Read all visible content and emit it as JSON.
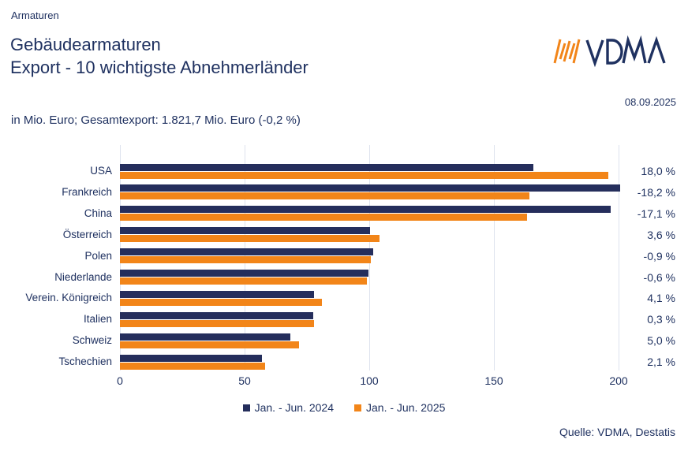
{
  "header": {
    "kicker": "Armaturen",
    "title_line1": "Gebäudearmaturen",
    "title_line2": "Export - 10 wichtigste Abnehmerländer",
    "subtitle": "in Mio. Euro; Gesamtexport: 1.821,7 Mio. Euro (-0,2 %)",
    "date": "08.09.2025",
    "logo_text": "VDMA"
  },
  "colors": {
    "navy": "#252e5c",
    "orange": "#f28519",
    "grid": "#dee3ee",
    "text": "#1f3160"
  },
  "chart_data": {
    "type": "bar",
    "orientation": "horizontal",
    "title": "Gebäudearmaturen Export - 10 wichtigste Abnehmerländer",
    "xlabel": "Mio. Euro",
    "ylabel": "",
    "xlim": [
      0,
      200
    ],
    "x_ticks": [
      "0",
      "50",
      "100",
      "150",
      "200"
    ],
    "grid": true,
    "legend_position": "bottom",
    "categories": [
      "USA",
      "Frankreich",
      "China",
      "Österreich",
      "Polen",
      "Niederlande",
      "Verein. Königreich",
      "Italien",
      "Schweiz",
      "Tschechien"
    ],
    "series": [
      {
        "name": "Jan. - Jun. 2024",
        "color": "#252e5c",
        "values": [
          165.9,
          200.6,
          196.8,
          100.4,
          101.5,
          99.8,
          77.9,
          77.6,
          68.3,
          57.1
        ]
      },
      {
        "name": "Jan. - Jun. 2025",
        "color": "#f28519",
        "values": [
          195.8,
          164.1,
          163.2,
          104.0,
          100.6,
          99.2,
          81.1,
          77.8,
          71.7,
          58.3
        ]
      }
    ],
    "change_labels": [
      "18,0 %",
      "-18,2 %",
      "-17,1 %",
      "3,6 %",
      "-0,9 %",
      "-0,6 %",
      "4,1 %",
      "0,3 %",
      "5,0 %",
      "2,1 %"
    ]
  },
  "footer": {
    "source": "Quelle: VDMA, Destatis"
  }
}
